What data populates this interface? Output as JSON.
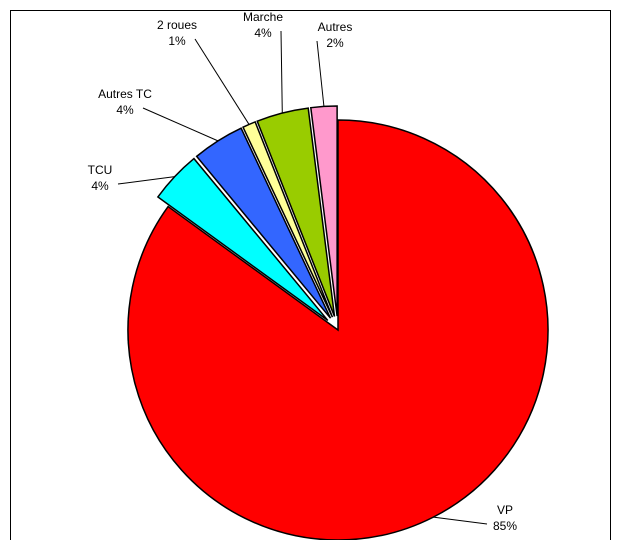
{
  "chart_data": {
    "type": "pie",
    "categories": [
      "VP",
      "TCU",
      "Autres TC",
      "2 roues",
      "Marche",
      "Autres"
    ],
    "values": [
      85,
      4,
      4,
      1,
      4,
      2
    ],
    "value_labels": [
      "85%",
      "4%",
      "4%",
      "1%",
      "4%",
      "2%"
    ],
    "colors": [
      "#ff0000",
      "#00ffff",
      "#3366ff",
      "#ffff99",
      "#99cc00",
      "#ff99cc"
    ]
  }
}
